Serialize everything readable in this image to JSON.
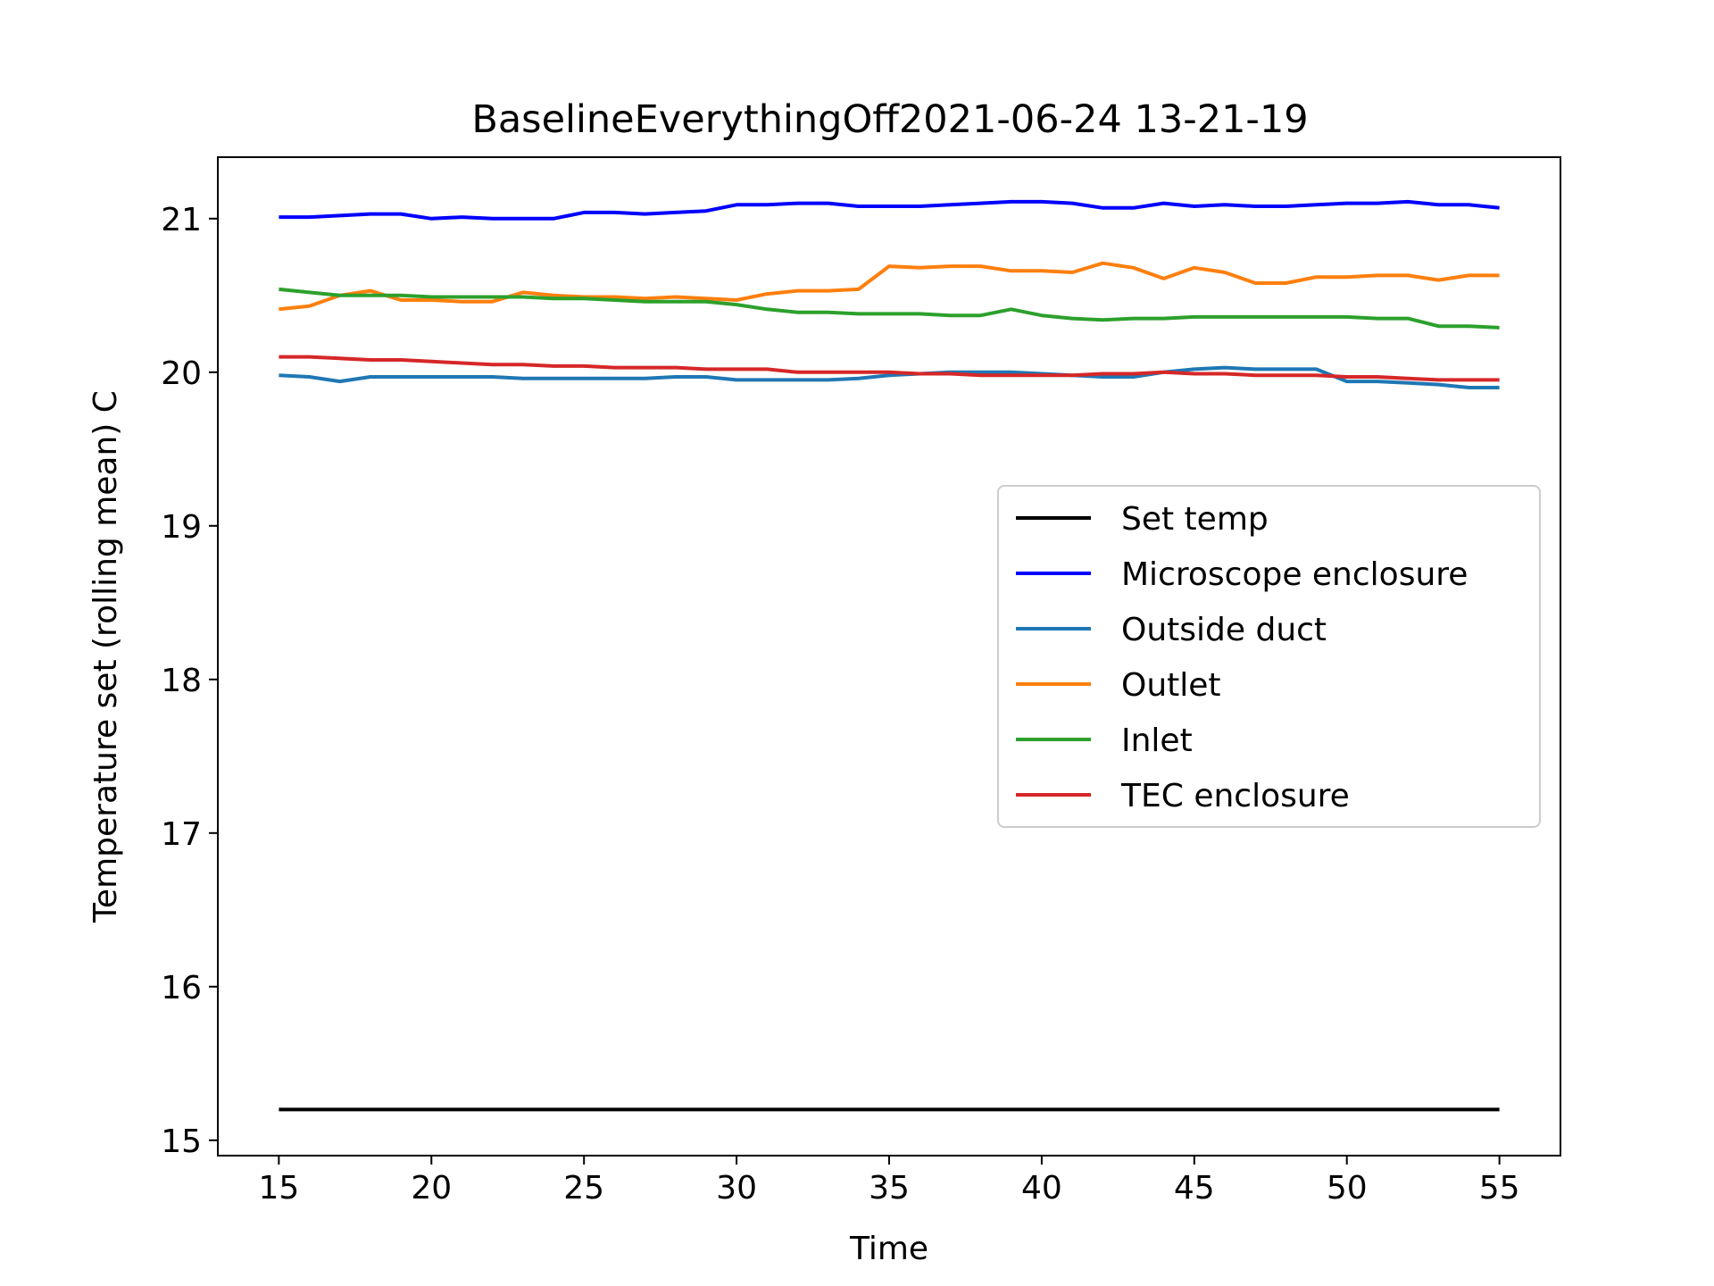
{
  "chart_data": {
    "type": "line",
    "title": "BaselineEverythingOff2021-06-24 13-21-19",
    "xlabel": "Time",
    "ylabel": "Temperature set (rolling mean) C",
    "xlim": [
      13,
      57
    ],
    "ylim": [
      14.9,
      21.4
    ],
    "xticks": [
      15,
      20,
      25,
      30,
      35,
      40,
      45,
      50,
      55
    ],
    "yticks": [
      15,
      16,
      17,
      18,
      19,
      20,
      21
    ],
    "grid": false,
    "legend_position": "right",
    "x": [
      15,
      16,
      17,
      18,
      19,
      20,
      21,
      22,
      23,
      24,
      25,
      26,
      27,
      28,
      29,
      30,
      31,
      32,
      33,
      34,
      35,
      36,
      37,
      38,
      39,
      40,
      41,
      42,
      43,
      44,
      45,
      46,
      47,
      48,
      49,
      50,
      51,
      52,
      53,
      54,
      55
    ],
    "series": [
      {
        "name": "Set temp",
        "color": "#000000",
        "values": [
          15.2,
          15.2,
          15.2,
          15.2,
          15.2,
          15.2,
          15.2,
          15.2,
          15.2,
          15.2,
          15.2,
          15.2,
          15.2,
          15.2,
          15.2,
          15.2,
          15.2,
          15.2,
          15.2,
          15.2,
          15.2,
          15.2,
          15.2,
          15.2,
          15.2,
          15.2,
          15.2,
          15.2,
          15.2,
          15.2,
          15.2,
          15.2,
          15.2,
          15.2,
          15.2,
          15.2,
          15.2,
          15.2,
          15.2,
          15.2,
          15.2
        ]
      },
      {
        "name": "Microscope enclosure",
        "color": "#0000ff",
        "values": [
          21.01,
          21.01,
          21.02,
          21.03,
          21.03,
          21.0,
          21.01,
          21.0,
          21.0,
          21.0,
          21.04,
          21.04,
          21.03,
          21.04,
          21.05,
          21.09,
          21.09,
          21.1,
          21.1,
          21.08,
          21.08,
          21.08,
          21.09,
          21.1,
          21.11,
          21.11,
          21.1,
          21.07,
          21.07,
          21.1,
          21.08,
          21.09,
          21.08,
          21.08,
          21.09,
          21.1,
          21.1,
          21.11,
          21.09,
          21.09,
          21.07
        ]
      },
      {
        "name": "Outside duct",
        "color": "#1f77b4",
        "values": [
          19.98,
          19.97,
          19.94,
          19.97,
          19.97,
          19.97,
          19.97,
          19.97,
          19.96,
          19.96,
          19.96,
          19.96,
          19.96,
          19.97,
          19.97,
          19.95,
          19.95,
          19.95,
          19.95,
          19.96,
          19.98,
          19.99,
          20.0,
          20.0,
          20.0,
          19.99,
          19.98,
          19.97,
          19.97,
          20.0,
          20.02,
          20.03,
          20.02,
          20.02,
          20.02,
          19.94,
          19.94,
          19.93,
          19.92,
          19.9,
          19.9
        ]
      },
      {
        "name": "Outlet",
        "color": "#ff7f0e",
        "values": [
          20.41,
          20.43,
          20.5,
          20.53,
          20.47,
          20.47,
          20.46,
          20.46,
          20.52,
          20.5,
          20.49,
          20.49,
          20.48,
          20.49,
          20.48,
          20.47,
          20.51,
          20.53,
          20.53,
          20.54,
          20.69,
          20.68,
          20.69,
          20.69,
          20.66,
          20.66,
          20.65,
          20.71,
          20.68,
          20.61,
          20.68,
          20.65,
          20.58,
          20.58,
          20.62,
          20.62,
          20.63,
          20.63,
          20.6,
          20.63,
          20.63
        ]
      },
      {
        "name": "Inlet",
        "color": "#2ca02c",
        "values": [
          20.54,
          20.52,
          20.5,
          20.5,
          20.5,
          20.49,
          20.49,
          20.49,
          20.49,
          20.48,
          20.48,
          20.47,
          20.46,
          20.46,
          20.46,
          20.44,
          20.41,
          20.39,
          20.39,
          20.38,
          20.38,
          20.38,
          20.37,
          20.37,
          20.41,
          20.37,
          20.35,
          20.34,
          20.35,
          20.35,
          20.36,
          20.36,
          20.36,
          20.36,
          20.36,
          20.36,
          20.35,
          20.35,
          20.3,
          20.3,
          20.29
        ]
      },
      {
        "name": "TEC enclosure",
        "color": "#d62728",
        "values": [
          20.1,
          20.1,
          20.09,
          20.08,
          20.08,
          20.07,
          20.06,
          20.05,
          20.05,
          20.04,
          20.04,
          20.03,
          20.03,
          20.03,
          20.02,
          20.02,
          20.02,
          20.0,
          20.0,
          20.0,
          20.0,
          19.99,
          19.99,
          19.98,
          19.98,
          19.98,
          19.98,
          19.99,
          19.99,
          20.0,
          19.99,
          19.99,
          19.98,
          19.98,
          19.98,
          19.97,
          19.97,
          19.96,
          19.95,
          19.95,
          19.95
        ]
      }
    ]
  }
}
